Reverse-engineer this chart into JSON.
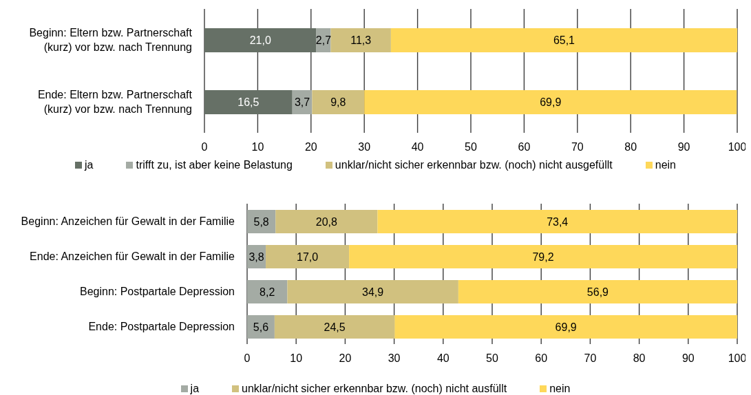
{
  "chart_data": [
    {
      "type": "bar",
      "orientation": "horizontal",
      "stacked": true,
      "categories": [
        "Beginn: Eltern bzw. Partnerschaft (kurz) vor bzw. nach Trennung",
        "Ende: Eltern bzw. Partnerschaft (kurz) vor bzw. nach Trennung"
      ],
      "series": [
        {
          "name": "ja",
          "color": "#667066",
          "values": [
            21.0,
            16.5
          ],
          "value_labels": [
            "21,0",
            "16,5"
          ]
        },
        {
          "name": "trifft zu, ist aber keine Belastung",
          "color": "#a4aba4",
          "values": [
            2.7,
            3.7
          ],
          "value_labels": [
            "2,7",
            "3,7"
          ]
        },
        {
          "name": "unklar/nicht sicher erkennbar bzw. (noch) nicht ausgefüllt",
          "color": "#d1c17f",
          "values": [
            11.3,
            9.8
          ],
          "value_labels": [
            "11,3",
            "9,8"
          ]
        },
        {
          "name": "nein",
          "color": "#fed85a",
          "values": [
            65.1,
            69.9
          ],
          "value_labels": [
            "65,1",
            "69,9"
          ]
        }
      ],
      "xlim": [
        0,
        100
      ],
      "xticks": [
        0,
        10,
        20,
        30,
        40,
        50,
        60,
        70,
        80,
        90,
        100
      ],
      "grid": "x",
      "legend": "bottom"
    },
    {
      "type": "bar",
      "orientation": "horizontal",
      "stacked": true,
      "categories": [
        "Beginn: Anzeichen für Gewalt in der Familie",
        "Ende: Anzeichen für Gewalt in der Familie",
        "Beginn: Postpartale Depression",
        "Ende: Postpartale Depression"
      ],
      "series": [
        {
          "name": "ja",
          "color": "#a4aba4",
          "values": [
            5.8,
            3.8,
            8.2,
            5.6
          ],
          "value_labels": [
            "5,8",
            "3,8",
            "8,2",
            "5,6"
          ]
        },
        {
          "name": "unklar/nicht sicher erkennbar bzw. (noch) nicht ausfüllt",
          "color": "#d1c17f",
          "values": [
            20.8,
            17.0,
            34.9,
            24.5
          ],
          "value_labels": [
            "20,8",
            "17,0",
            "34,9",
            "24,5"
          ]
        },
        {
          "name": "nein",
          "color": "#fed85a",
          "values": [
            73.4,
            79.2,
            56.9,
            69.9
          ],
          "value_labels": [
            "73,4",
            "79,2",
            "56,9",
            "69,9"
          ]
        }
      ],
      "xlim": [
        0,
        100
      ],
      "xticks": [
        0,
        10,
        20,
        30,
        40,
        50,
        60,
        70,
        80,
        90,
        100
      ],
      "grid": "x",
      "legend": "bottom"
    }
  ]
}
